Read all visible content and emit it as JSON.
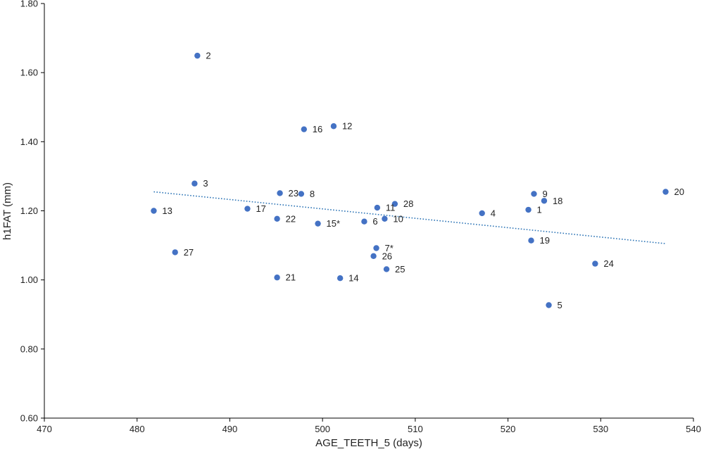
{
  "chart_data": {
    "type": "scatter",
    "xlabel": "AGE_TEETH_5 (days)",
    "ylabel": "h1FAT (mm)",
    "xlim": [
      470,
      540
    ],
    "ylim": [
      0.6,
      1.8
    ],
    "x_ticks": [
      "470",
      "480",
      "490",
      "500",
      "510",
      "520",
      "530",
      "540"
    ],
    "y_ticks": [
      "0.60",
      "0.80",
      "1.00",
      "1.20",
      "1.40",
      "1.60",
      "1.80"
    ],
    "grid": false,
    "point_color": "#4472c4",
    "trendline": {
      "type": "linear",
      "style": "dotted",
      "color": "#2e75b6",
      "x": [
        481.8,
        537.0
      ],
      "y": [
        1.255,
        1.105
      ]
    },
    "points": [
      {
        "label": "1",
        "x": 522.2,
        "y": 1.203
      },
      {
        "label": "2",
        "x": 486.5,
        "y": 1.649
      },
      {
        "label": "3",
        "x": 486.2,
        "y": 1.279
      },
      {
        "label": "4",
        "x": 517.2,
        "y": 1.193
      },
      {
        "label": "5",
        "x": 524.4,
        "y": 0.927
      },
      {
        "label": "6",
        "x": 504.5,
        "y": 1.169
      },
      {
        "label": "7*",
        "x": 505.8,
        "y": 1.092
      },
      {
        "label": "8",
        "x": 497.7,
        "y": 1.249
      },
      {
        "label": "9",
        "x": 522.8,
        "y": 1.249
      },
      {
        "label": "10",
        "x": 506.7,
        "y": 1.177
      },
      {
        "label": "11",
        "x": 505.9,
        "y": 1.209
      },
      {
        "label": "12",
        "x": 501.2,
        "y": 1.445
      },
      {
        "label": "13",
        "x": 481.8,
        "y": 1.2
      },
      {
        "label": "14",
        "x": 501.9,
        "y": 1.005
      },
      {
        "label": "15*",
        "x": 499.5,
        "y": 1.163
      },
      {
        "label": "16",
        "x": 498.0,
        "y": 1.436
      },
      {
        "label": "17",
        "x": 491.9,
        "y": 1.206
      },
      {
        "label": "18",
        "x": 523.9,
        "y": 1.229
      },
      {
        "label": "19",
        "x": 522.5,
        "y": 1.114
      },
      {
        "label": "20",
        "x": 537.0,
        "y": 1.255
      },
      {
        "label": "21",
        "x": 495.1,
        "y": 1.007
      },
      {
        "label": "22",
        "x": 495.1,
        "y": 1.177
      },
      {
        "label": "23",
        "x": 495.4,
        "y": 1.251
      },
      {
        "label": "24",
        "x": 529.4,
        "y": 1.047
      },
      {
        "label": "25",
        "x": 506.9,
        "y": 1.031
      },
      {
        "label": "26",
        "x": 505.5,
        "y": 1.069
      },
      {
        "label": "27",
        "x": 484.1,
        "y": 1.08
      },
      {
        "label": "28",
        "x": 507.8,
        "y": 1.22
      }
    ]
  }
}
